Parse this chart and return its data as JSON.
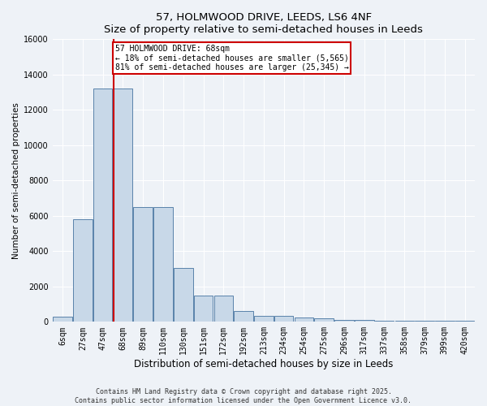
{
  "title_line1": "57, HOLMWOOD DRIVE, LEEDS, LS6 4NF",
  "title_line2": "Size of property relative to semi-detached houses in Leeds",
  "xlabel": "Distribution of semi-detached houses by size in Leeds",
  "ylabel": "Number of semi-detached properties",
  "categories": [
    "6sqm",
    "27sqm",
    "47sqm",
    "68sqm",
    "89sqm",
    "110sqm",
    "130sqm",
    "151sqm",
    "172sqm",
    "192sqm",
    "213sqm",
    "234sqm",
    "254sqm",
    "275sqm",
    "296sqm",
    "317sqm",
    "337sqm",
    "358sqm",
    "379sqm",
    "399sqm",
    "420sqm"
  ],
  "values": [
    280,
    5800,
    13200,
    13200,
    6500,
    6500,
    3050,
    1500,
    1500,
    600,
    350,
    320,
    250,
    220,
    120,
    100,
    80,
    70,
    60,
    50,
    40
  ],
  "bar_color": "#c8d8e8",
  "bar_edge_color": "#5a82aa",
  "vline_x_index": 3,
  "vline_color": "#cc0000",
  "annotation_title": "57 HOLMWOOD DRIVE: 68sqm",
  "annotation_line2": "← 18% of semi-detached houses are smaller (5,565)",
  "annotation_line3": "81% of semi-detached houses are larger (25,345) →",
  "annotation_box_color": "#cc0000",
  "ylim": [
    0,
    16000
  ],
  "yticks": [
    0,
    2000,
    4000,
    6000,
    8000,
    10000,
    12000,
    14000,
    16000
  ],
  "footer_line1": "Contains HM Land Registry data © Crown copyright and database right 2025.",
  "footer_line2": "Contains public sector information licensed under the Open Government Licence v3.0.",
  "bg_color": "#eef2f7",
  "plot_bg_color": "#eef2f7",
  "grid_color": "#ffffff",
  "title_fontsize": 9.5,
  "ylabel_fontsize": 7.5,
  "xlabel_fontsize": 8.5,
  "tick_fontsize": 7,
  "footer_fontsize": 6,
  "annot_fontsize": 7
}
